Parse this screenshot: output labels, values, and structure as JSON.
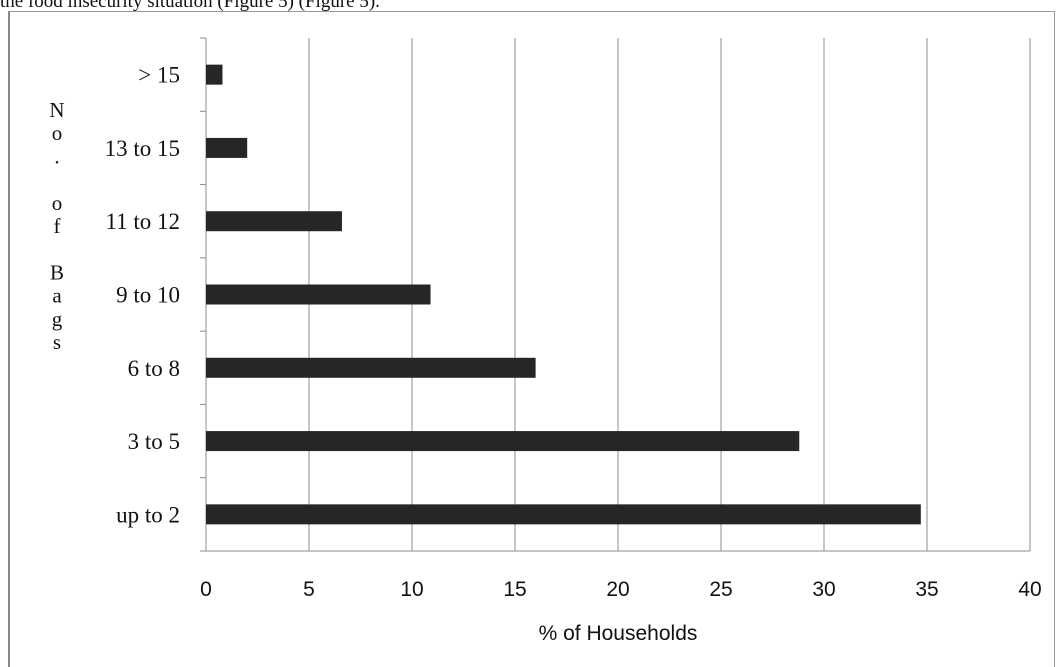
{
  "document": {
    "caption_fragment": "the food insecurity situation (Figure 5) (Figure 5)."
  },
  "chart_data": {
    "type": "bar",
    "orientation": "horizontal",
    "categories": [
      "up to 2",
      "3 to 5",
      "6 to 8",
      "9 to 10",
      "11 to 12",
      "13 to 15",
      "> 15"
    ],
    "values": [
      34.7,
      28.8,
      16.0,
      10.9,
      6.6,
      2.0,
      0.8
    ],
    "xlabel": "% of Households",
    "ylabel": "No. of Bags",
    "xlim": [
      0,
      40
    ],
    "xticks": [
      "0",
      "5",
      "10",
      "15",
      "20",
      "25",
      "30",
      "35",
      "40"
    ],
    "grid": true,
    "bar_color": "#262626"
  }
}
